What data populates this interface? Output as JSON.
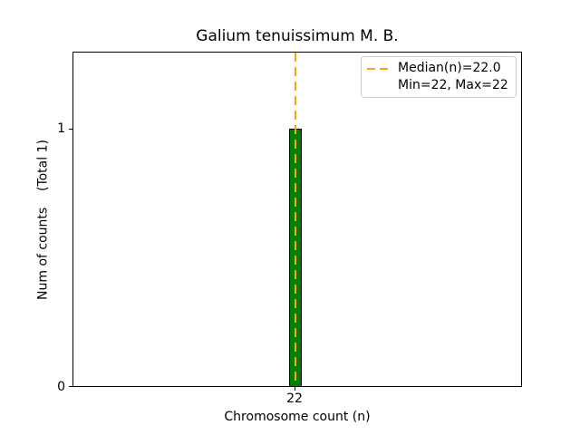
{
  "figure": {
    "title": "Galium tenuissimum M. B.",
    "xlabel": "Chromosome count (n)",
    "ylabel": "Num of counts    (Total 1)",
    "x_tick_labels": [
      "22"
    ],
    "y_tick_labels": [
      "0",
      "1"
    ],
    "legend": {
      "entries": [
        {
          "label": "Median(n)=22.0",
          "handle": "orange-dashed-line"
        },
        {
          "label": "Min=22, Max=22",
          "handle": "none"
        }
      ]
    },
    "colors": {
      "bar_fill": "#008000",
      "bar_edge": "#000000",
      "median_line": "#FFA500",
      "axes_spine": "#000000",
      "legend_border": "#cccccc",
      "background": "#ffffff"
    }
  },
  "chart_data": {
    "type": "bar",
    "title": "Galium tenuissimum M. B.",
    "xlabel": "Chromosome count (n)",
    "ylabel": "Num of counts    (Total 1)",
    "categories": [
      22
    ],
    "values": [
      1
    ],
    "total_counts": 1,
    "median": 22.0,
    "min": 22,
    "max": 22,
    "ylim": [
      0,
      1.3
    ],
    "yticks": [
      0,
      1
    ],
    "xticks": [
      22
    ],
    "grid": false,
    "legend_position": "upper right",
    "bar_color": "#008000",
    "median_line_color": "#FFA500",
    "median_line_style": "dashed",
    "annotations": [
      "Median(n)=22.0",
      "Min=22, Max=22"
    ]
  }
}
